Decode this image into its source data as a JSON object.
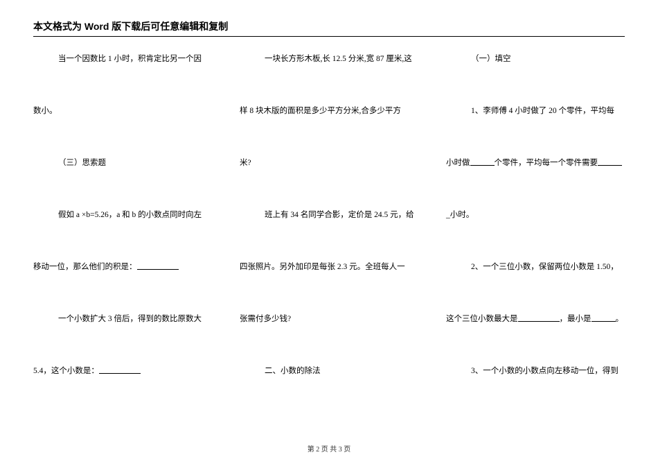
{
  "header": "本文格式为 Word 版下载后可任意编辑和复制",
  "footer": "第 2 页 共 3 页",
  "cols": {
    "c1": {
      "r1": "当一个因数比 1 小时，积肯定比另一个因",
      "r2": "数小。",
      "r3": "（三）思索题",
      "r4": "假如 a ×b=5.26，a 和 b 的小数点同时向左",
      "r5_a": "移动一位，那么他们的积是：",
      "r6": "一个小数扩大 3 倍后，得到的数比原数大",
      "r7_a": "5.4，这个小数是："
    },
    "c2": {
      "r1": "一块长方形木板,长 12.5 分米,宽 87 厘米,这",
      "r2": "样 8 块木版的面积是多少平方分米,合多少平方",
      "r3": "米?",
      "r4": "班上有 34 名同学合影，定价是 24.5 元，给",
      "r5": "四张照片。另外加印是每张 2.3 元。全班每人一",
      "r6": "张需付多少钱?",
      "r7": "二、小数的除法"
    },
    "c3": {
      "r1": "（一）填空",
      "r2": "1、李师傅 4 小时做了 20 个零件，平均每",
      "r3_a": "小时做",
      "r3_b": "个零件，平均每一个零件需要",
      "r4": "_小时。",
      "r5": "2、一个三位小数，保留两位小数是 1.50，",
      "r6_a": "这个三位小数最大是",
      "r6_b": "，最小是",
      "r6_c": "。",
      "r7": "3、一个小数的小数点向左移动一位，得到"
    }
  }
}
